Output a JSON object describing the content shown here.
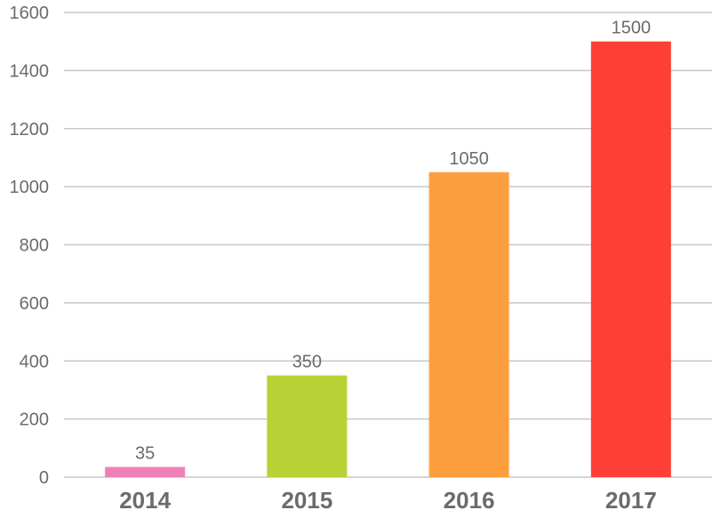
{
  "chart_data": {
    "type": "bar",
    "title": "",
    "xlabel": "",
    "ylabel": "",
    "categories": [
      "2014",
      "2015",
      "2016",
      "2017"
    ],
    "values": [
      35,
      350,
      1050,
      1500
    ],
    "data_labels": [
      "35",
      "350",
      "1050",
      "1500"
    ],
    "colors": [
      "#f07fb8",
      "#b8d134",
      "#fd9f3f",
      "#fe3f35"
    ],
    "ylim": [
      0,
      1600
    ],
    "yticks": [
      0,
      200,
      400,
      600,
      800,
      1000,
      1200,
      1400,
      1600
    ],
    "ytick_labels": [
      "0",
      "200",
      "400",
      "600",
      "800",
      "1000",
      "1200",
      "1400",
      "1600"
    ],
    "grid": true
  }
}
